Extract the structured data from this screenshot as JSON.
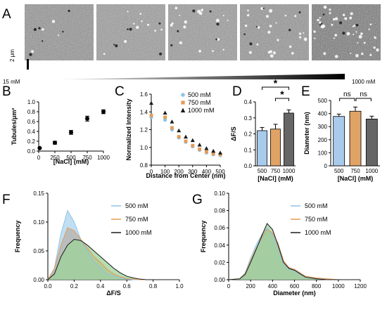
{
  "panel_labels": [
    "A",
    "B",
    "C",
    "D",
    "E",
    "F",
    "G"
  ],
  "panel_a": {
    "scale_bar": "2 μm",
    "gradient_left": "15 mM",
    "gradient_right": "1000 mM",
    "tile_count": 5
  },
  "colors": {
    "c500": "#8ec3e8",
    "c750": "#e69a55",
    "c1000": "#1a1a1a",
    "bar500": "#a8cbec",
    "bar750": "#e0a366",
    "bar1000": "#666666",
    "green": "#9dd19a",
    "sig": "#000000"
  },
  "chart_data": [
    {
      "id": "B",
      "type": "scatter",
      "xlabel": "[NaCl] (mM)",
      "ylabel": "Tubules/μm²",
      "xlim": [
        0,
        1000
      ],
      "ylim": [
        0,
        1.0
      ],
      "x_ticks": [
        "0",
        "250",
        "500",
        "750",
        "1000"
      ],
      "y_ticks": [
        "0.0",
        "0.2",
        "0.4",
        "0.6",
        "0.8",
        "1.0"
      ],
      "x": [
        15,
        250,
        500,
        750,
        1000
      ],
      "y": [
        0.06,
        0.17,
        0.38,
        0.66,
        0.8
      ],
      "err": [
        0.0,
        0.03,
        0.04,
        0.05,
        0.04
      ]
    },
    {
      "id": "C",
      "type": "scatter",
      "xlabel": "Distance from Center (nm)",
      "ylabel": "Normalized Intensity",
      "xlim": [
        0,
        500
      ],
      "ylim": [
        0.8,
        1.6
      ],
      "x_ticks": [
        "0",
        "100",
        "200",
        "300",
        "400",
        "500"
      ],
      "y_ticks": [
        "0.8",
        "1.0",
        "1.2",
        "1.4",
        "1.6"
      ],
      "series": [
        {
          "name": "500 mM",
          "x": [
            0,
            100,
            150,
            200,
            250,
            300,
            350,
            400,
            450,
            500
          ],
          "y": [
            1.34,
            1.31,
            1.2,
            1.11,
            1.06,
            1.01,
            0.97,
            0.94,
            0.92,
            0.91
          ]
        },
        {
          "name": "750 mM",
          "x": [
            0,
            100,
            150,
            200,
            250,
            300,
            350,
            400,
            450,
            500
          ],
          "y": [
            1.36,
            1.34,
            1.22,
            1.12,
            1.07,
            1.02,
            0.98,
            0.95,
            0.93,
            0.92
          ]
        },
        {
          "name": "1000 mM",
          "x": [
            0,
            100,
            150,
            200,
            250,
            300,
            350,
            400,
            450,
            500
          ],
          "y": [
            1.5,
            1.39,
            1.29,
            1.19,
            1.12,
            1.08,
            1.03,
            0.99,
            0.96,
            0.94
          ]
        }
      ]
    },
    {
      "id": "D",
      "type": "bar",
      "categories": [
        "500",
        "750",
        "1000"
      ],
      "values": [
        0.22,
        0.23,
        0.33
      ],
      "err": [
        0.02,
        0.03,
        0.02
      ],
      "ylabel": "ΔF/S",
      "xlabel": "[NaCl] (mM)",
      "ylim": [
        0,
        0.4
      ],
      "y_ticks": [
        "0.0",
        "0.1",
        "0.2",
        "0.3",
        "0.4"
      ],
      "annotations": [
        "*",
        "*"
      ]
    },
    {
      "id": "E",
      "type": "bar",
      "categories": [
        "500",
        "750",
        "1000"
      ],
      "values": [
        378,
        418,
        358
      ],
      "err": [
        18,
        32,
        22
      ],
      "ylabel": "Diameter (nm)",
      "xlabel": "[NaCl] (mM)",
      "ylim": [
        0,
        500
      ],
      "y_ticks": [
        "0",
        "100",
        "200",
        "300",
        "400",
        "500"
      ],
      "annotations": [
        "ns",
        "ns"
      ]
    },
    {
      "id": "F",
      "type": "area",
      "xlabel": "ΔF/S",
      "ylabel": "Frequency",
      "xlim": [
        0,
        1.0
      ],
      "ylim": [
        0,
        0.15
      ],
      "x_ticks": [
        "0.0",
        "0.2",
        "0.4",
        "0.6",
        "0.8",
        "1.0"
      ],
      "y_ticks": [
        "0.00",
        "0.05",
        "0.10",
        "0.15"
      ],
      "x": [
        0.0,
        0.05,
        0.1,
        0.15,
        0.2,
        0.25,
        0.3,
        0.35,
        0.4,
        0.45,
        0.5,
        0.55,
        0.6,
        0.65,
        0.7,
        0.75,
        0.8,
        0.9,
        1.0
      ],
      "series": [
        {
          "name": "500 mM",
          "y": [
            0.0,
            0.02,
            0.08,
            0.12,
            0.1,
            0.07,
            0.05,
            0.03,
            0.02,
            0.01,
            0.006,
            0.003,
            0.001,
            0,
            0,
            0,
            0,
            0,
            0
          ]
        },
        {
          "name": "750 mM",
          "y": [
            0.0,
            0.02,
            0.06,
            0.09,
            0.085,
            0.07,
            0.055,
            0.04,
            0.03,
            0.018,
            0.01,
            0.005,
            0.002,
            0.001,
            0,
            0,
            0,
            0,
            0
          ]
        },
        {
          "name": "1000 mM",
          "y": [
            0.0,
            0.01,
            0.04,
            0.06,
            0.07,
            0.068,
            0.06,
            0.05,
            0.04,
            0.03,
            0.02,
            0.012,
            0.006,
            0.003,
            0.001,
            0,
            0,
            0,
            0
          ]
        }
      ]
    },
    {
      "id": "G",
      "type": "area",
      "xlabel": "Diameter (nm)",
      "ylabel": "Frequency",
      "xlim": [
        0,
        1200
      ],
      "ylim": [
        0,
        0.1
      ],
      "x_ticks": [
        "0",
        "200",
        "400",
        "600",
        "800",
        "1000",
        "1200"
      ],
      "y_ticks": [
        "0.00",
        "0.02",
        "0.04",
        "0.06",
        "0.08",
        "0.10"
      ],
      "x": [
        0,
        100,
        150,
        200,
        250,
        300,
        350,
        400,
        450,
        500,
        550,
        600,
        650,
        700,
        800,
        900,
        1000,
        1100,
        1200
      ],
      "series": [
        {
          "name": "500 mM",
          "y": [
            0,
            0.001,
            0.008,
            0.025,
            0.04,
            0.052,
            0.06,
            0.052,
            0.035,
            0.018,
            0.012,
            0.01,
            0.006,
            0.003,
            0.001,
            0,
            0,
            0,
            0
          ]
        },
        {
          "name": "750 mM",
          "y": [
            0,
            0.001,
            0.007,
            0.022,
            0.036,
            0.048,
            0.058,
            0.054,
            0.042,
            0.022,
            0.014,
            0.012,
            0.008,
            0.004,
            0.002,
            0.001,
            0,
            0,
            0
          ]
        },
        {
          "name": "1000 mM",
          "y": [
            0,
            0.001,
            0.006,
            0.02,
            0.035,
            0.05,
            0.065,
            0.058,
            0.04,
            0.02,
            0.013,
            0.011,
            0.007,
            0.003,
            0.001,
            0,
            0,
            0,
            0
          ]
        }
      ]
    }
  ]
}
